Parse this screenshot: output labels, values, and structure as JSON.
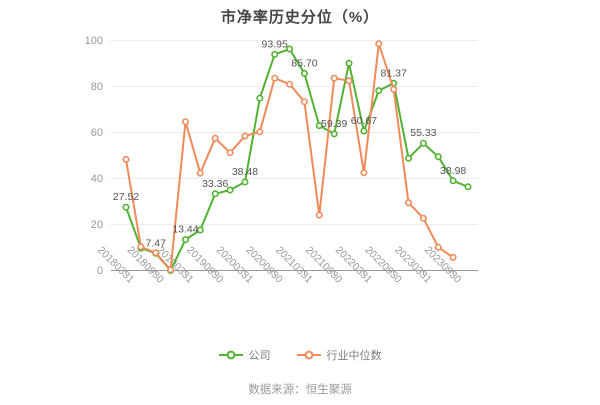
{
  "title": "市净率历史分位（%）",
  "source_note": "数据来源：恒生聚源",
  "legend": {
    "items": [
      {
        "name": "公司",
        "color": "#52b232"
      },
      {
        "name": "行业中位数",
        "color": "#f08a5a"
      }
    ]
  },
  "colors": {
    "grid": "#ededed",
    "axis_line": "#999999",
    "axis_text": "#999999",
    "data_label": "#555555",
    "title_text": "#454545"
  },
  "chart_data": {
    "type": "line",
    "title": "市净率历史分位（%）",
    "xlabel": "",
    "ylabel": "",
    "ylim": [
      0,
      100
    ],
    "y_ticks": [
      "0",
      "20",
      "40",
      "60",
      "80",
      "100"
    ],
    "grid": true,
    "legend_position": "bottom",
    "x_tick_labels": [
      "20180331",
      "20180930",
      "20190331",
      "20190930",
      "20200331",
      "20200930",
      "20210331",
      "20210930",
      "20220331",
      "20220930",
      "20230331",
      "20230930"
    ],
    "points_per_tick": 2,
    "series": [
      {
        "name": "公司",
        "color": "#52b232",
        "values": [
          27.52,
          9.7,
          7.47,
          0,
          13.44,
          17.6,
          33.36,
          35.0,
          38.48,
          74.9,
          93.95,
          96.3,
          85.7,
          63.0,
          59.39,
          90.1,
          60.67,
          78.2,
          81.37,
          48.8,
          55.33,
          49.5,
          38.98,
          36.4
        ],
        "point_labels": [
          "27.52",
          "7.47",
          "13.44",
          "33.36",
          "38.48",
          "93.95",
          "85.70",
          "59.39",
          "60.67",
          "81.37",
          "55.33",
          "38.98"
        ]
      },
      {
        "name": "行业中位数",
        "color": "#f08a5a",
        "values": [
          48.3,
          10.3,
          7.7,
          0.3,
          64.7,
          42.3,
          57.5,
          51.2,
          58.5,
          60.3,
          83.6,
          81.0,
          73.4,
          24.1,
          83.6,
          82.5,
          42.5,
          98.6,
          78.8,
          29.5,
          22.7,
          10.1,
          5.7,
          null
        ],
        "point_labels": []
      }
    ]
  }
}
